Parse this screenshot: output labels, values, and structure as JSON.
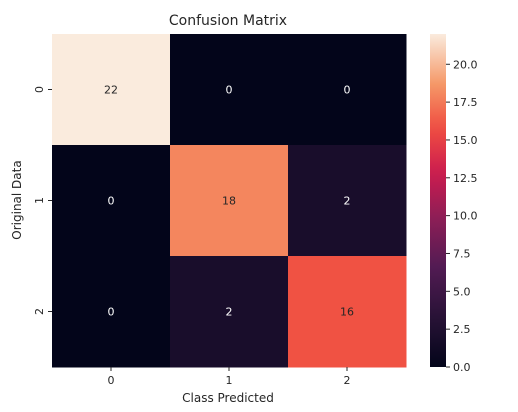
{
  "chart_data": {
    "type": "heatmap",
    "title": "Confusion Matrix",
    "xlabel": "Class Predicted",
    "ylabel": "Original Data",
    "x_categories": [
      "0",
      "1",
      "2"
    ],
    "y_categories": [
      "0",
      "1",
      "2"
    ],
    "values": [
      [
        22,
        0,
        0
      ],
      [
        0,
        18,
        2
      ],
      [
        0,
        2,
        16
      ]
    ],
    "colorbar": {
      "range": [
        0,
        22
      ],
      "ticks": [
        "0.0",
        "2.5",
        "5.0",
        "7.5",
        "10.0",
        "12.5",
        "15.0",
        "17.5",
        "20.0"
      ]
    },
    "colormap": "rocket",
    "annot_color_light": "#ffffff",
    "annot_color_dark": "#262626"
  }
}
